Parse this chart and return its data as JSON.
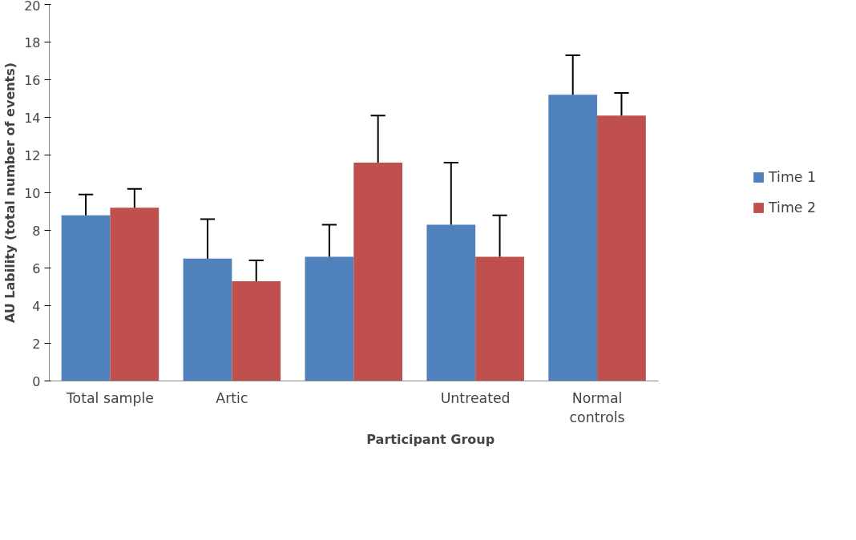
{
  "chart_data": {
    "type": "bar",
    "xlabel": "Participant  Group",
    "ylabel": "AU Lability (total number of events)",
    "categories": [
      "Total sample",
      "Artic",
      null,
      "Untreated",
      "Normal\ncontrols"
    ],
    "series": [
      {
        "name": "Time 1",
        "color": "#4f81bd",
        "values": [
          8.8,
          6.5,
          6.6,
          8.3,
          15.2
        ],
        "errors": [
          [
            8.8,
            9.9
          ],
          [
            6.5,
            8.6
          ],
          [
            6.6,
            8.3
          ],
          [
            8.3,
            11.6
          ],
          [
            15.2,
            17.3
          ]
        ]
      },
      {
        "name": "Time 2",
        "color": "#c0504d",
        "values": [
          9.2,
          5.3,
          11.6,
          6.6,
          14.1
        ],
        "errors": [
          [
            9.2,
            10.2
          ],
          [
            5.3,
            6.4
          ],
          [
            11.6,
            14.1
          ],
          [
            6.6,
            8.8
          ],
          [
            14.1,
            15.3
          ]
        ]
      }
    ],
    "ylim": [
      0,
      20
    ],
    "yticks": [
      0,
      2,
      4,
      6,
      8,
      10,
      12,
      14,
      16,
      18,
      20
    ],
    "grid": false,
    "legend": "right"
  }
}
